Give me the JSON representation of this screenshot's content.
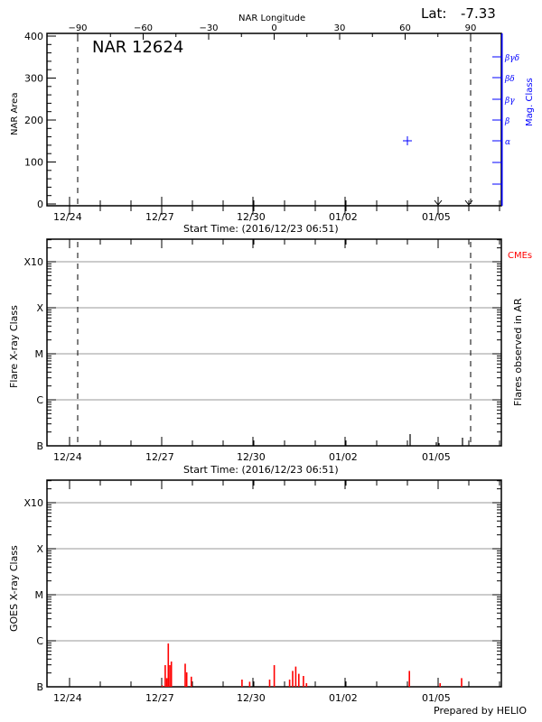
{
  "header": {
    "lat_label": "Lat:",
    "lat_value": "-7.33",
    "region_title": "NAR 12624"
  },
  "colors": {
    "axis": "#000000",
    "mag_class": "#0000ff",
    "cme": "#ff0000",
    "goes_flux": "#ff0000",
    "gridline": "#999999"
  },
  "footer": {
    "credit": "Prepared by HELIO"
  },
  "chart_data": [
    {
      "type": "scatter",
      "title": "NAR 12624",
      "panel": "area",
      "top_axis_label": "NAR Longitude",
      "top_ticks": [
        "-90",
        "-60",
        "-30",
        "0",
        "30",
        "60",
        "90"
      ],
      "xlabel": "Start Time: (2016/12/23 06:51)",
      "x_tick_labels": [
        "12/24",
        "12/27",
        "12/30",
        "01/02",
        "01/05"
      ],
      "ylabel": "NAR Area",
      "ylim": [
        0,
        400
      ],
      "y_ticks": [
        "0",
        "100",
        "200",
        "300",
        "400"
      ],
      "right_axis_label": "Mag. Class",
      "right_ticks": [
        "α",
        "β",
        "βγ",
        "βδ",
        "βγδ"
      ],
      "points": [
        {
          "longitude": 60,
          "mag_class": "α",
          "marker": "+"
        }
      ],
      "dashed_lines_longitude": [
        -90,
        90
      ],
      "arrow_markers_dates": [
        "01/04 ~18:00",
        "01/05 ~23:00"
      ]
    },
    {
      "type": "bar",
      "panel": "flares",
      "xlabel": "Start Time: (2016/12/23 06:51)",
      "x_tick_labels": [
        "12/24",
        "12/27",
        "12/30",
        "01/02",
        "01/05"
      ],
      "ylabel": "Flare X-ray Class",
      "y_ticks": [
        "B",
        "C",
        "M",
        "X",
        "X10"
      ],
      "right_axis_label": "Flares observed in AR",
      "legend": [
        "CMEs"
      ],
      "events_days_from_start": [
        3.9,
        5.7,
        6.0,
        6.8
      ],
      "event_heights_frac": [
        0.05,
        0.025,
        0.02,
        0.035
      ]
    },
    {
      "type": "area",
      "panel": "goes",
      "x_tick_labels": [
        "12/24",
        "12/27",
        "12/30",
        "01/02",
        "01/05"
      ],
      "ylabel": "GOES X-ray Class",
      "y_ticks": [
        "B",
        "C",
        "M",
        "X",
        "X10"
      ],
      "series": [
        {
          "name": "GOES flux",
          "bursts": [
            {
              "day": 3.75,
              "level": 0.02
            },
            {
              "day": 3.85,
              "level": 0.3
            },
            {
              "day": 3.9,
              "level": 0.12
            },
            {
              "day": 3.95,
              "level": 0.6
            },
            {
              "day": 4.0,
              "level": 0.3
            },
            {
              "day": 4.05,
              "level": 0.35
            },
            {
              "day": 4.5,
              "level": 0.32
            },
            {
              "day": 4.55,
              "level": 0.2
            },
            {
              "day": 4.7,
              "level": 0.14
            },
            {
              "day": 6.35,
              "level": 0.1
            },
            {
              "day": 6.6,
              "level": 0.07
            },
            {
              "day": 7.25,
              "level": 0.1
            },
            {
              "day": 7.4,
              "level": 0.3
            },
            {
              "day": 7.9,
              "level": 0.1
            },
            {
              "day": 8.0,
              "level": 0.22
            },
            {
              "day": 8.1,
              "level": 0.28
            },
            {
              "day": 8.2,
              "level": 0.18
            },
            {
              "day": 8.35,
              "level": 0.15
            },
            {
              "day": 8.45,
              "level": 0.05
            },
            {
              "day": 11.8,
              "level": 0.22
            },
            {
              "day": 12.8,
              "level": 0.05
            },
            {
              "day": 13.5,
              "level": 0.12
            }
          ]
        }
      ]
    }
  ]
}
